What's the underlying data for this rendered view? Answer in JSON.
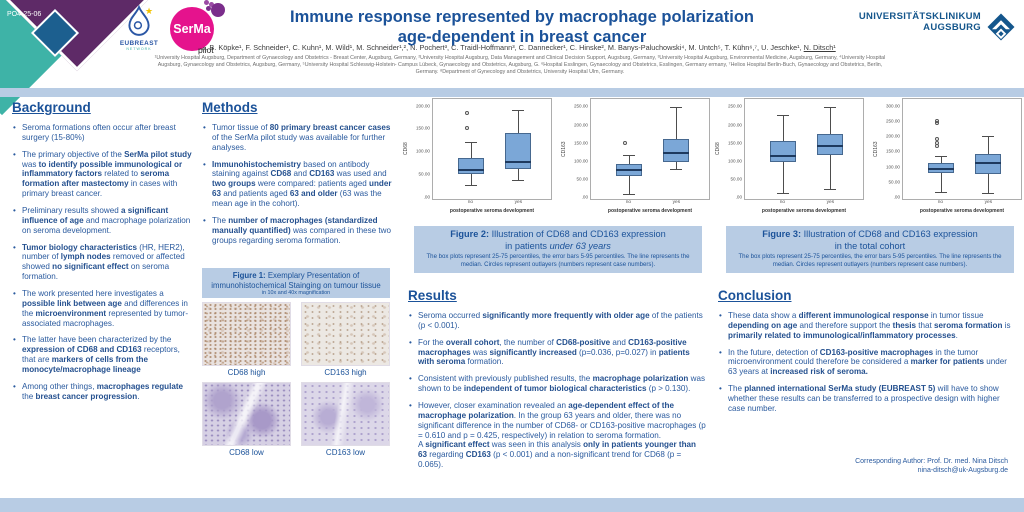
{
  "colors": {
    "accent_blue": "#1b5299",
    "body_blue": "#2a5a9e",
    "light_blue_band": "#b8cce4",
    "teal": "#3eb3a7",
    "purple": "#5e2a67",
    "diamond_blue": "#1c5f8f",
    "serma_pink": "#e5138d",
    "box_fill": "#7ba7d7",
    "clinic_blue": "#14568c"
  },
  "header": {
    "poster_id": "PO4-25-06",
    "title_line1": "Immune response represented by macrophage polarization",
    "title_line2": "age-dependent in breast cancer",
    "authors": "M. B. Köpke¹, F. Schneider¹, C. Kuhn¹, M. Wild¹, M. Schneider¹,², N. Pochert³, C. Traidl-Hoffmann³, C. Dannecker¹, C. Hinske², M. Banys-Paluchowski⁴, M. Untch⁵, T. Kühn⁶,⁷, U. Jeschke¹, ",
    "authors_underlined": "N. Ditsch¹",
    "affiliation_lines": [
      "¹University Hospital Augsburg, Department of Gynaecology and Obstetrics - Breast Center, Augsburg, Germany, ²University Hospital Augsburg, Data Management and Clinical Decision Support, Augsburg, Germany, ³University Hospital Augsburg, Environmental Medicine, Augsburg, Germany, ⁴University Hospital",
      "Augsburg, Gynaecology and Obstetrics, Augsburg, Germany, ⁵University Hospital Schleswig-Holstein- Campus Lübeck, Gynaecology and Obstetrics, Augsburg, G. ⁶Hospital Esslingen, Gynaecology and Obstetrics, Esslingen, Germany ermany, ⁷Helios Hospital Berlin-Buch, Gynaecology and Obstetrics, Berlin,",
      "Germany. ⁸Department of Gynecology and Obstetrics, University Hospital Ulm, Germany."
    ],
    "logos": {
      "eubreast": "EUBREAST",
      "eubreast_sub": "NETWORK",
      "serma": "SerMa",
      "serma_sub": "pilot",
      "clinic_line1": "UNIVERSITÄTSKLINIKUM",
      "clinic_line2": "AUGSBURG"
    }
  },
  "sections": {
    "background": {
      "heading": "Background",
      "bullets": [
        "Seroma formations often occur after breast surgery (15-80%)",
        "The primary objective of the <b>SerMa pilot study</b> was <b>to identify possible immunological or inflammatory factors</b> related to <b>seroma formation after mastectomy</b> in cases with primary breast cancer.",
        "Preliminary results showed <b>a significant influence of age</b> and macrophage polarization on seroma development.",
        "<b>Tumor biology characteristics</b> (HR, HER2), number of <b>lymph nodes</b> removed or affected showed <b>no significant effect</b> on seroma formation.",
        "The work presented here investigates a <b>possible link between age</b> and differences in the <b>microenvironment</b> represented by tumor-associated macrophages.",
        "The latter have been characterized by the <b>expression of CD68 and CD163</b> receptors, that are <b>markers of cells from the monocyte/macrophage lineage</b>",
        "Among other things, <b>macrophages regulate</b> the <b>breast cancer progression</b>."
      ]
    },
    "methods": {
      "heading": "Methods",
      "bullets": [
        "Tumor tissue of <b>80 primary breast cancer cases</b> of the SerMa pilot study was available for further analyses.",
        "<b>Immunohistochemistry</b> based on antibody staining against <b>CD68</b> and <b>CD163</b> was used and <b>two groups</b> were compared: patients aged <b>under 63</b> and patients aged <b>63 and older</b> (63 was the mean age in the cohort).",
        "The <b>number of macrophages (standardized manually quantified)</b> was compared in these two groups regarding seroma formation."
      ]
    },
    "results": {
      "heading": "Results",
      "bullets": [
        "Seroma occurred <b>significantly more frequently with older age</b> of the patients (p &lt; 0.001).",
        "For the <b>overall cohort</b>, the number of <b>CD68-positive</b> and <b>CD163-positive macrophages</b> was <b>significantly increased</b> (p=0.036, p=0.027) in <b>patients with seroma</b> formation.",
        "Consistent with previously published results, the <b>macrophage polarization</b> was shown to be <b>independent of tumor biological characteristics</b> (p &gt; 0.130).",
        "However, closer examination revealed an <b>age-dependent effect of the macrophage polarization</b>. In the group 63 years and older, there was no significant difference in the number of CD68- or CD163-positive macrophages (p = 0.610 and p = 0.425, respectively) in relation to seroma formation.<br>A <b>significant effect</b> was seen in this analysis <b>only in patients younger than 63</b> regarding <b>CD163</b> (p &lt; 0.001) and a non-significant trend for CD68 (p = 0.065)."
      ]
    },
    "conclusion": {
      "heading": "Conclusion",
      "bullets": [
        "These data show a <b>different immunological response</b> in tumor tissue <b>depending on age</b> and therefore support the <b>thesis</b> that <b>seroma formation</b> is <b>primarily related to immunological/inflammatory processes</b>.",
        "In the future, detection of <b>CD163-positive macrophages</b> in the tumor microenvironment could therefore be considered a <b>marker for patients</b> under 63 years at <b>increased risk of seroma.</b>",
        "The <b>planned international SerMa study (EUBREAST 5)</b> will have to show whether these results can be transferred to a prospective design with higher case number."
      ]
    }
  },
  "figure1": {
    "title_prefix": "Figure 1:",
    "title": " Exemplary Presentation of immunohistochemical Stainging on tumour tissue",
    "subtitle": "in 10x and 40x magnification",
    "image_labels": [
      "CD68 high",
      "CD163 high",
      "CD68 low",
      "CD163 low"
    ]
  },
  "figure2": {
    "caption_prefix": "Figure 2:",
    "caption_line1": " Illustration of CD68 and CD163 expression",
    "caption_line2_html": "in patients <i>under 63 years</i>",
    "note": "The box plots represent 25-75 percentiles, the error bars 5-95 percentiles. The line represents the median. Circles represent outlayers (numbers represent case numbers)."
  },
  "figure3": {
    "caption_prefix": "Figure 3:",
    "caption_line1": " Illustration of CD68 and CD163 expression",
    "caption_line2_html": "in the total cohort",
    "note": "The box plots represent 25-75 percentiles, the error bars 5-95 percentiles. The line represents the median. Circles represent outlayers (numbers represent case numbers)."
  },
  "footer": {
    "corresponding_line1": "Corresponding Author: Prof. Dr. med. Nina Ditsch",
    "corresponding_line2": "nina-ditsch@uk-Augsburg.de"
  },
  "chart_data": [
    {
      "type": "boxplot",
      "marker": "CD68",
      "group": "patients under 63 years",
      "ylabel": "CD68",
      "xlabel": "postoperative seroma development",
      "categories": [
        "no",
        "yes"
      ],
      "ymax": 210,
      "yticks": [
        {
          "v": 0,
          "label": ".00"
        },
        {
          "v": 50,
          "label": "50.00"
        },
        {
          "v": 100,
          "label": "100.00"
        },
        {
          "v": 150,
          "label": "150.00"
        },
        {
          "v": 200,
          "label": "200.00"
        }
      ],
      "boxes": [
        {
          "low": 25,
          "q1": 48,
          "median": 58,
          "q3": 85,
          "high": 120,
          "outliers": [
            152,
            185
          ]
        },
        {
          "low": 35,
          "q1": 60,
          "median": 77,
          "q3": 140,
          "high": 193,
          "outliers": []
        }
      ]
    },
    {
      "type": "boxplot",
      "marker": "CD163",
      "group": "patients under 63 years",
      "ylabel": "CD163",
      "xlabel": "postoperative seroma development",
      "categories": [
        "no",
        "yes"
      ],
      "ymax": 265,
      "yticks": [
        {
          "v": 0,
          "label": ".00"
        },
        {
          "v": 50,
          "label": "50.00"
        },
        {
          "v": 100,
          "label": "100.00"
        },
        {
          "v": 150,
          "label": "150.00"
        },
        {
          "v": 200,
          "label": "200.00"
        },
        {
          "v": 250,
          "label": "250.00"
        }
      ],
      "boxes": [
        {
          "low": 5,
          "q1": 55,
          "median": 72,
          "q3": 90,
          "high": 115,
          "outliers": [
            150
          ]
        },
        {
          "low": 75,
          "q1": 95,
          "median": 120,
          "q3": 160,
          "high": 252,
          "outliers": []
        }
      ]
    },
    {
      "type": "boxplot",
      "marker": "CD68",
      "group": "total cohort",
      "ylabel": "CD68",
      "xlabel": "postoperative seroma development",
      "categories": [
        "no",
        "yes"
      ],
      "ymax": 265,
      "yticks": [
        {
          "v": 0,
          "label": ".00"
        },
        {
          "v": 50,
          "label": "50.00"
        },
        {
          "v": 100,
          "label": "100.00"
        },
        {
          "v": 150,
          "label": "150.00"
        },
        {
          "v": 200,
          "label": "200.00"
        },
        {
          "v": 250,
          "label": "250.00"
        }
      ],
      "boxes": [
        {
          "low": 8,
          "q1": 95,
          "median": 112,
          "q3": 155,
          "high": 228,
          "outliers": []
        },
        {
          "low": 20,
          "q1": 115,
          "median": 140,
          "q3": 175,
          "high": 250,
          "outliers": []
        }
      ]
    },
    {
      "type": "boxplot",
      "marker": "CD163",
      "group": "total cohort",
      "ylabel": "CD163",
      "xlabel": "postoperative seroma development",
      "categories": [
        "no",
        "yes"
      ],
      "ymax": 315,
      "yticks": [
        {
          "v": 0,
          "label": ".00"
        },
        {
          "v": 50,
          "label": "50.00"
        },
        {
          "v": 100,
          "label": "100.00"
        },
        {
          "v": 150,
          "label": "150.00"
        },
        {
          "v": 200,
          "label": "200.00"
        },
        {
          "v": 250,
          "label": "250.00"
        },
        {
          "v": 300,
          "label": "300.00"
        }
      ],
      "boxes": [
        {
          "low": 15,
          "q1": 78,
          "median": 90,
          "q3": 110,
          "high": 133,
          "outliers": [
            168,
            178,
            190,
            245,
            253
          ]
        },
        {
          "low": 10,
          "q1": 75,
          "median": 110,
          "q3": 140,
          "high": 200,
          "outliers": []
        }
      ]
    }
  ]
}
